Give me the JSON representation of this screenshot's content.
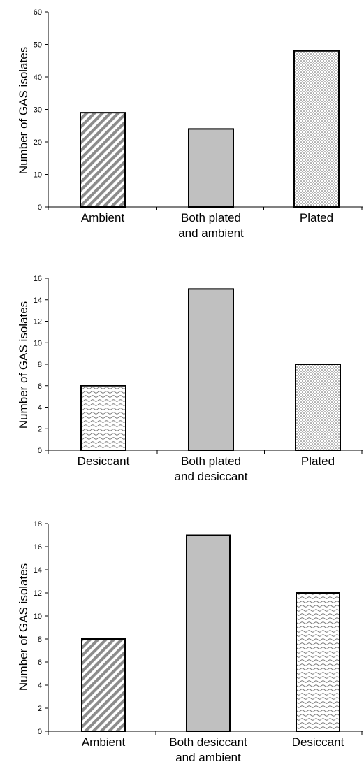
{
  "chart_data": [
    {
      "type": "bar",
      "title": "",
      "xlabel": "",
      "ylabel": "Number of GAS isolates",
      "ylim": [
        0,
        60
      ],
      "yticks": [
        0,
        10,
        20,
        30,
        40,
        50,
        60
      ],
      "grid": false,
      "categories": [
        [
          "Ambient"
        ],
        [
          "Both plated",
          "and ambient"
        ],
        [
          "Plated"
        ]
      ],
      "values": [
        29,
        24,
        48
      ],
      "patterns": [
        "diagonal-stripes",
        "solid-gray",
        "dotted"
      ]
    },
    {
      "type": "bar",
      "title": "",
      "xlabel": "",
      "ylabel": "Number of GAS isolates",
      "ylim": [
        0,
        16
      ],
      "yticks": [
        0,
        2,
        4,
        6,
        8,
        10,
        12,
        14,
        16
      ],
      "grid": false,
      "categories": [
        [
          "Desiccant"
        ],
        [
          "Both plated",
          "and desiccant"
        ],
        [
          "Plated"
        ]
      ],
      "values": [
        6,
        15,
        8
      ],
      "patterns": [
        "wavy",
        "solid-gray",
        "dotted"
      ]
    },
    {
      "type": "bar",
      "title": "",
      "xlabel": "",
      "ylabel": "Number of GAS isolates",
      "ylim": [
        0,
        18
      ],
      "yticks": [
        0,
        2,
        4,
        6,
        8,
        10,
        12,
        14,
        16,
        18
      ],
      "grid": false,
      "categories": [
        [
          "Ambient"
        ],
        [
          "Both desiccant",
          "and ambient"
        ],
        [
          "Desiccant"
        ]
      ],
      "values": [
        8,
        17,
        12
      ],
      "patterns": [
        "diagonal-stripes",
        "solid-gray",
        "wavy"
      ]
    }
  ],
  "colors": {
    "bar_fill_gray": "#c0c0c0",
    "stripe": "#8c8c8c",
    "dot": "#555555",
    "wave": "#777777"
  }
}
